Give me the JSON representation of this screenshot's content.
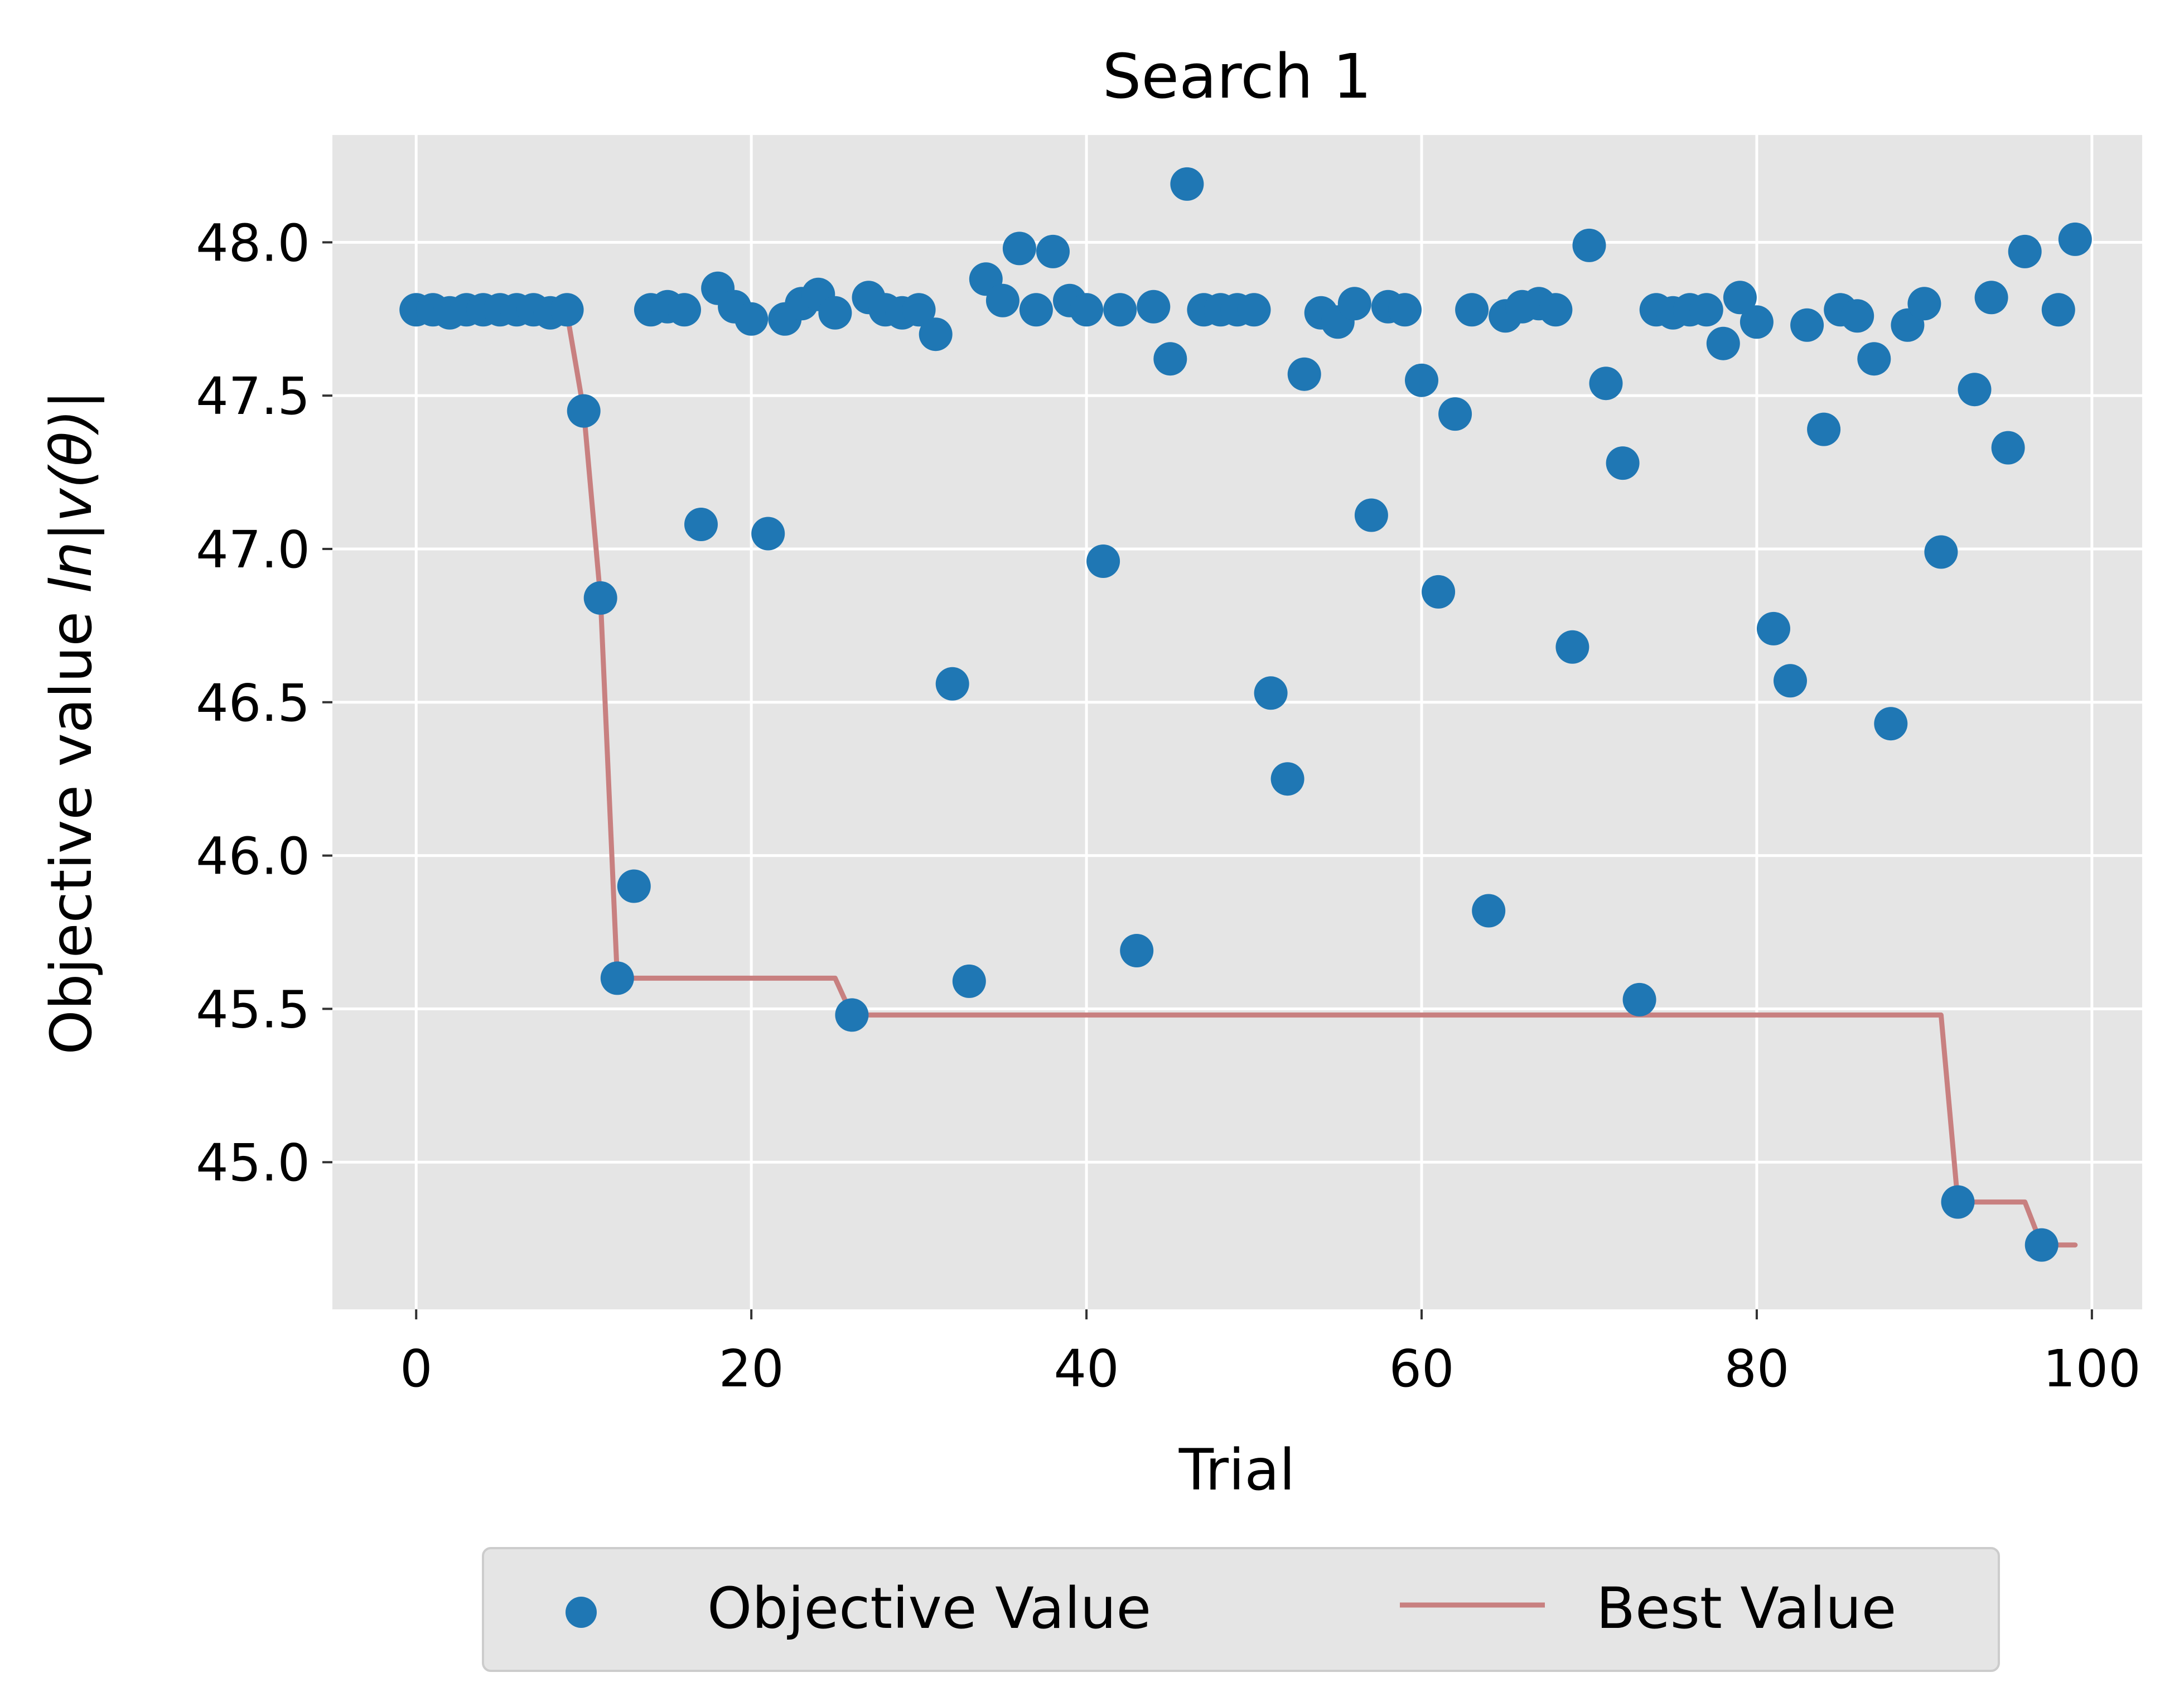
{
  "chart_data": {
    "type": "scatter",
    "title": "Search 1",
    "xlabel": "Trial",
    "ylabel_prefix": "Objective value ",
    "ylabel_math": "ln|v(θ)|",
    "xlim": [
      -5,
      103
    ],
    "ylim": [
      44.52,
      48.35
    ],
    "xticks": [
      0,
      20,
      40,
      60,
      80,
      100
    ],
    "yticks": [
      45.0,
      45.5,
      46.0,
      46.5,
      47.0,
      47.5,
      48.0
    ],
    "grid": true,
    "legend_position": "bottom-center",
    "colors": {
      "background": "#e5e5e5",
      "grid": "#ffffff",
      "scatter": "#1f77b4",
      "line": "#c88080"
    },
    "series": [
      {
        "name": "Objective Value",
        "kind": "scatter",
        "x": [
          0,
          1,
          2,
          3,
          4,
          5,
          6,
          7,
          8,
          9,
          10,
          11,
          12,
          13,
          14,
          15,
          16,
          17,
          18,
          19,
          20,
          21,
          22,
          23,
          24,
          25,
          26,
          27,
          28,
          29,
          30,
          31,
          32,
          33,
          34,
          35,
          36,
          37,
          38,
          39,
          40,
          41,
          42,
          43,
          44,
          45,
          46,
          47,
          48,
          49,
          50,
          51,
          52,
          53,
          54,
          55,
          56,
          57,
          58,
          59,
          60,
          61,
          62,
          63,
          64,
          65,
          66,
          67,
          68,
          69,
          70,
          71,
          72,
          73,
          74,
          75,
          76,
          77,
          78,
          79,
          80,
          81,
          82,
          83,
          84,
          85,
          86,
          87,
          88,
          89,
          90,
          91,
          92,
          93,
          94,
          95,
          96,
          97,
          98,
          99
        ],
        "y": [
          47.78,
          47.78,
          47.77,
          47.78,
          47.78,
          47.78,
          47.78,
          47.78,
          47.77,
          47.78,
          47.45,
          46.84,
          45.6,
          45.9,
          47.78,
          47.79,
          47.78,
          47.08,
          47.85,
          47.79,
          47.75,
          47.05,
          47.75,
          47.8,
          47.83,
          47.77,
          45.48,
          47.82,
          47.78,
          47.77,
          47.78,
          47.7,
          46.56,
          45.59,
          47.88,
          47.81,
          47.98,
          47.78,
          47.97,
          47.81,
          47.78,
          46.96,
          47.78,
          45.69,
          47.79,
          47.62,
          48.19,
          47.78,
          47.78,
          47.78,
          47.78,
          46.53,
          46.25,
          47.57,
          47.77,
          47.74,
          47.8,
          47.11,
          47.79,
          47.78,
          47.55,
          46.86,
          47.44,
          47.78,
          45.82,
          47.76,
          47.79,
          47.8,
          47.78,
          46.68,
          47.99,
          47.54,
          47.28,
          45.53,
          47.78,
          47.77,
          47.78,
          47.78,
          47.67,
          47.82,
          47.74,
          46.74,
          46.57,
          47.73,
          47.39,
          47.78,
          47.76,
          47.62,
          46.43,
          47.73,
          47.8,
          46.99,
          44.87,
          47.52,
          47.82,
          47.33,
          47.97,
          44.73,
          47.78,
          48.01
        ]
      },
      {
        "name": "Best Value",
        "kind": "line",
        "x": [
          0,
          1,
          2,
          3,
          4,
          5,
          6,
          7,
          8,
          9,
          10,
          11,
          12,
          13,
          14,
          15,
          16,
          17,
          18,
          19,
          20,
          21,
          22,
          23,
          24,
          25,
          26,
          27,
          28,
          29,
          30,
          31,
          32,
          33,
          34,
          35,
          36,
          37,
          38,
          39,
          40,
          41,
          42,
          43,
          44,
          45,
          46,
          47,
          48,
          49,
          50,
          51,
          52,
          53,
          54,
          55,
          56,
          57,
          58,
          59,
          60,
          61,
          62,
          63,
          64,
          65,
          66,
          67,
          68,
          69,
          70,
          71,
          72,
          73,
          74,
          75,
          76,
          77,
          78,
          79,
          80,
          81,
          82,
          83,
          84,
          85,
          86,
          87,
          88,
          89,
          90,
          91,
          92,
          93,
          94,
          95,
          96,
          97,
          98,
          99
        ],
        "y": [
          47.78,
          47.78,
          47.77,
          47.77,
          47.77,
          47.77,
          47.77,
          47.77,
          47.77,
          47.77,
          47.45,
          46.84,
          45.6,
          45.6,
          45.6,
          45.6,
          45.6,
          45.6,
          45.6,
          45.6,
          45.6,
          45.6,
          45.6,
          45.6,
          45.6,
          45.6,
          45.48,
          45.48,
          45.48,
          45.48,
          45.48,
          45.48,
          45.48,
          45.48,
          45.48,
          45.48,
          45.48,
          45.48,
          45.48,
          45.48,
          45.48,
          45.48,
          45.48,
          45.48,
          45.48,
          45.48,
          45.48,
          45.48,
          45.48,
          45.48,
          45.48,
          45.48,
          45.48,
          45.48,
          45.48,
          45.48,
          45.48,
          45.48,
          45.48,
          45.48,
          45.48,
          45.48,
          45.48,
          45.48,
          45.48,
          45.48,
          45.48,
          45.48,
          45.48,
          45.48,
          45.48,
          45.48,
          45.48,
          45.48,
          45.48,
          45.48,
          45.48,
          45.48,
          45.48,
          45.48,
          45.48,
          45.48,
          45.48,
          45.48,
          45.48,
          45.48,
          45.48,
          45.48,
          45.48,
          45.48,
          45.48,
          45.48,
          44.87,
          44.87,
          44.87,
          44.87,
          44.87,
          44.73,
          44.73,
          44.73
        ]
      }
    ]
  }
}
